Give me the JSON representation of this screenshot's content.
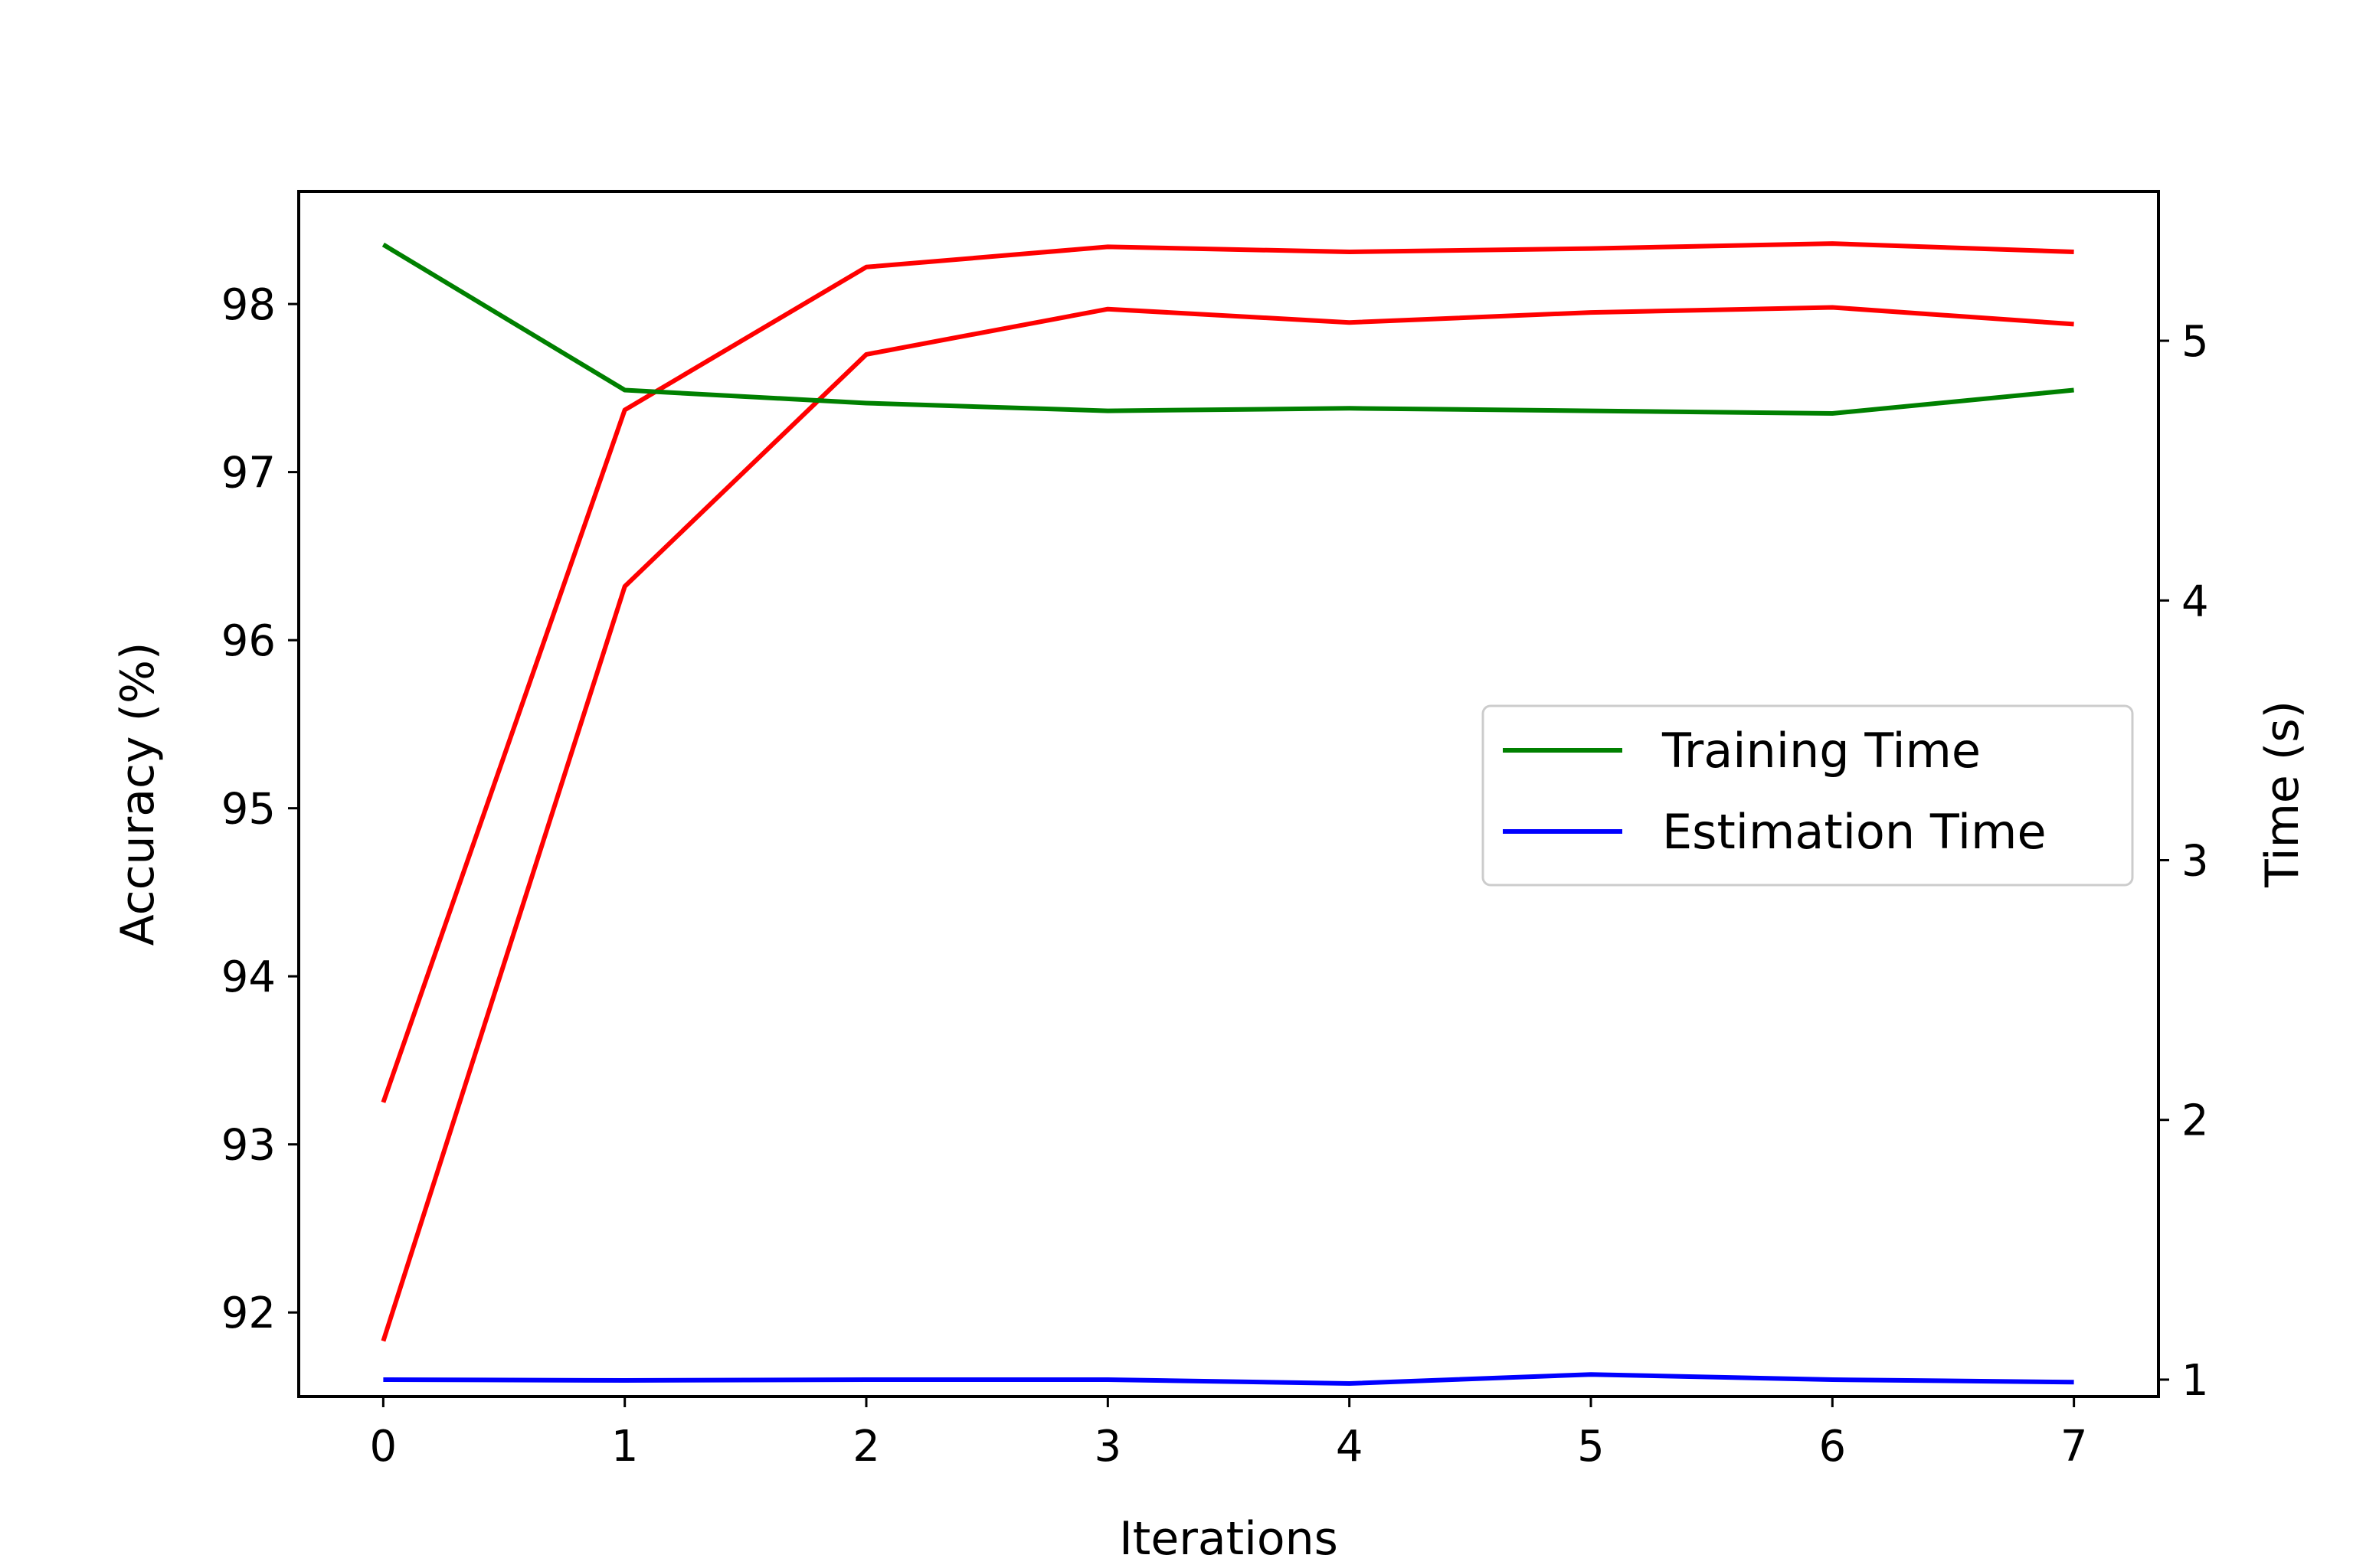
{
  "chart_data": {
    "type": "line",
    "title": "",
    "xlabel": "Iterations",
    "ylabel": "Accuracy (%)",
    "y2label": "Time (s)",
    "x": [
      0,
      1,
      2,
      3,
      4,
      5,
      6,
      7
    ],
    "xlim": [
      -0.35,
      7.35
    ],
    "ylim": [
      91.5,
      98.67
    ],
    "y2lim": [
      0.935,
      5.575
    ],
    "x_ticks": [
      "0",
      "1",
      "2",
      "3",
      "4",
      "5",
      "6",
      "7"
    ],
    "y_ticks": [
      "92",
      "93",
      "94",
      "95",
      "96",
      "97",
      "98"
    ],
    "y2_ticks": [
      "1",
      "2",
      "3",
      "4",
      "5"
    ],
    "grid": false,
    "legend": {
      "placement": "center-right"
    },
    "series": [
      {
        "axis": "left",
        "color": "#ff0000",
        "values": [
          93.25,
          97.37,
          98.22,
          98.34,
          98.31,
          98.33,
          98.36,
          98.31
        ]
      },
      {
        "axis": "left",
        "color": "#ff0000",
        "values": [
          91.83,
          96.32,
          97.7,
          97.97,
          97.89,
          97.95,
          97.98,
          97.88
        ]
      },
      {
        "name": "Training Time",
        "axis": "right",
        "color": "#008000",
        "values": [
          5.37,
          4.81,
          4.76,
          4.73,
          4.74,
          4.73,
          4.72,
          4.81
        ]
      },
      {
        "name": "Estimation Time",
        "axis": "right",
        "color": "#0000ff",
        "values": [
          1.0,
          0.997,
          1.0,
          1.0,
          0.985,
          1.02,
          1.0,
          0.99
        ]
      }
    ]
  }
}
